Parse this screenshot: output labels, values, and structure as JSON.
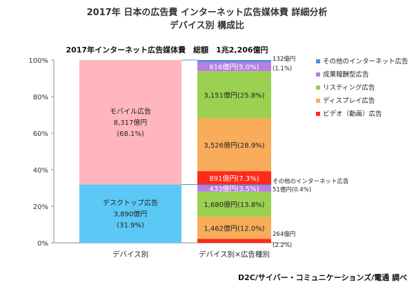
{
  "chart_data": {
    "type": "bar",
    "title_line1": "2017年 日本の広告費 インターネット広告媒体費 詳細分析",
    "title_line2": "デバイス別 構成比",
    "subtitle": "2017年インターネット広告媒体費　総額　1兆2,206億円",
    "ylim": [
      0,
      100
    ],
    "y_ticks": [
      "0%",
      "20%",
      "40%",
      "60%",
      "80%",
      "100%"
    ],
    "categories": [
      "デバイス別",
      "デバイス別×広告種別"
    ],
    "colors": {
      "mobile": "#ffb6be",
      "desktop": "#5bc8f5",
      "other": "#4a90d9",
      "performance": "#b77fe0",
      "listing": "#9bd050",
      "display": "#f9ac5a",
      "video": "#ff2a1a"
    },
    "device_bar": [
      {
        "key": "desktop",
        "name": "デスクトップ広告",
        "amount": "3,890億円",
        "pct_label": "(31.9%)",
        "value": 31.9
      },
      {
        "key": "mobile",
        "name": "モバイル広告",
        "amount": "8,317億円",
        "pct_label": "(68.1%)",
        "value": 68.1
      }
    ],
    "type_bar": [
      {
        "key": "video",
        "device": "desktop",
        "value": 2.2,
        "label": "",
        "side_label_1": "264億円",
        "side_label_2": "(2.2%)"
      },
      {
        "key": "display",
        "device": "desktop",
        "value": 12.0,
        "label": "1,462億円(12.0%)"
      },
      {
        "key": "listing",
        "device": "desktop",
        "value": 13.8,
        "label": "1,680億円(13.8%)"
      },
      {
        "key": "performance",
        "device": "desktop",
        "value": 3.5,
        "label": "433億円(3.5%)"
      },
      {
        "key": "other",
        "device": "desktop",
        "value": 0.4,
        "label": "",
        "side_label_1": "その他のインターネット広告",
        "side_label_2": "51億円(0.4%)"
      },
      {
        "key": "video",
        "device": "mobile",
        "value": 7.3,
        "label": "891億円(7.3%)"
      },
      {
        "key": "display",
        "device": "mobile",
        "value": 28.9,
        "label": "3,526億円(28.9%)"
      },
      {
        "key": "listing",
        "device": "mobile",
        "value": 25.8,
        "label": "3,151億円(25.8%)"
      },
      {
        "key": "performance",
        "device": "mobile",
        "value": 5.0,
        "label": "616億円(5.0%)"
      },
      {
        "key": "other",
        "device": "mobile",
        "value": 1.1,
        "label": "",
        "side_label_1": "132億円",
        "side_label_2": "(1.1%)"
      }
    ],
    "legend": [
      {
        "key": "other",
        "label": "その他のインターネット広告"
      },
      {
        "key": "performance",
        "label": "成果報酬型広告"
      },
      {
        "key": "listing",
        "label": "リスティング広告"
      },
      {
        "key": "display",
        "label": "ディスプレイ広告"
      },
      {
        "key": "video",
        "label": "ビデオ（動画）広告"
      }
    ],
    "source": "D2C/サイバー・コミュニケーションズ/電通 調べ"
  }
}
